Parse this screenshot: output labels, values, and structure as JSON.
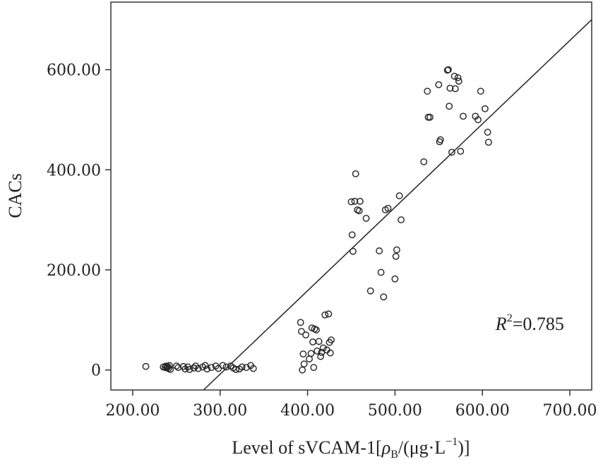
{
  "chart_data": {
    "type": "scatter",
    "title": "",
    "xlabel": {
      "prefix": "Level of sVCAM-1[",
      "rho": "ρ",
      "rho_sub": "B",
      "unit_open": "/(μg·L",
      "exponent": "−1",
      "unit_close": ")]"
    },
    "ylabel": "CACs",
    "xlim": [
      175,
      725
    ],
    "ylim": [
      -40,
      735
    ],
    "x_ticks": [
      200,
      300,
      400,
      500,
      600,
      700
    ],
    "x_tick_labels": [
      "200.00",
      "300.00",
      "400.00",
      "500.00",
      "600.00",
      "700.00"
    ],
    "y_ticks": [
      0,
      200,
      400,
      600
    ],
    "y_tick_labels": [
      "0",
      "200.00",
      "400.00",
      "600.00"
    ],
    "grid": false,
    "annotation": {
      "r": "R",
      "sup": "2",
      "text": "=0.785",
      "x": 615,
      "y": 80
    },
    "fit_line": {
      "x": [
        281,
        725
      ],
      "y": [
        -40,
        700
      ]
    },
    "points": [
      [
        215,
        7
      ],
      [
        235,
        6
      ],
      [
        237,
        5
      ],
      [
        238,
        8
      ],
      [
        239,
        4
      ],
      [
        240,
        7
      ],
      [
        241,
        3
      ],
      [
        242,
        9
      ],
      [
        243,
        1
      ],
      [
        250,
        8
      ],
      [
        252,
        5
      ],
      [
        258,
        7
      ],
      [
        260,
        2
      ],
      [
        263,
        6
      ],
      [
        265,
        1
      ],
      [
        270,
        4
      ],
      [
        272,
        8
      ],
      [
        275,
        3
      ],
      [
        280,
        6
      ],
      [
        283,
        9
      ],
      [
        285,
        2
      ],
      [
        290,
        5
      ],
      [
        295,
        8
      ],
      [
        298,
        3
      ],
      [
        303,
        9
      ],
      [
        307,
        6
      ],
      [
        312,
        8
      ],
      [
        315,
        4
      ],
      [
        318,
        1
      ],
      [
        322,
        2
      ],
      [
        325,
        6
      ],
      [
        330,
        5
      ],
      [
        335,
        9
      ],
      [
        338,
        3
      ],
      [
        392,
        95
      ],
      [
        393,
        77
      ],
      [
        394,
        0
      ],
      [
        395,
        32
      ],
      [
        396,
        12
      ],
      [
        398,
        70
      ],
      [
        402,
        22
      ],
      [
        404,
        33
      ],
      [
        405,
        84
      ],
      [
        406,
        56
      ],
      [
        407,
        5
      ],
      [
        408,
        82
      ],
      [
        410,
        80
      ],
      [
        411,
        38
      ],
      [
        413,
        57
      ],
      [
        415,
        27
      ],
      [
        416,
        35
      ],
      [
        418,
        44
      ],
      [
        420,
        110
      ],
      [
        422,
        40
      ],
      [
        424,
        112
      ],
      [
        425,
        55
      ],
      [
        426,
        34
      ],
      [
        427,
        60
      ],
      [
        450,
        336
      ],
      [
        451,
        270
      ],
      [
        452,
        237
      ],
      [
        454,
        337
      ],
      [
        455,
        392
      ],
      [
        457,
        320
      ],
      [
        459,
        318
      ],
      [
        460,
        337
      ],
      [
        467,
        303
      ],
      [
        472,
        158
      ],
      [
        482,
        238
      ],
      [
        484,
        195
      ],
      [
        487,
        146
      ],
      [
        489,
        320
      ],
      [
        492,
        323
      ],
      [
        500,
        182
      ],
      [
        501,
        227
      ],
      [
        502,
        240
      ],
      [
        505,
        348
      ],
      [
        507,
        300
      ],
      [
        533,
        416
      ],
      [
        537,
        557
      ],
      [
        538,
        505
      ],
      [
        540,
        505
      ],
      [
        550,
        570
      ],
      [
        551,
        456
      ],
      [
        552,
        460
      ],
      [
        560,
        599
      ],
      [
        561,
        600
      ],
      [
        562,
        527
      ],
      [
        563,
        563
      ],
      [
        565,
        435
      ],
      [
        568,
        587
      ],
      [
        569,
        562
      ],
      [
        572,
        584
      ],
      [
        573,
        577
      ],
      [
        575,
        437
      ],
      [
        578,
        507
      ],
      [
        592,
        507
      ],
      [
        595,
        500
      ],
      [
        598,
        557
      ],
      [
        603,
        522
      ],
      [
        606,
        475
      ],
      [
        607,
        455
      ]
    ]
  }
}
